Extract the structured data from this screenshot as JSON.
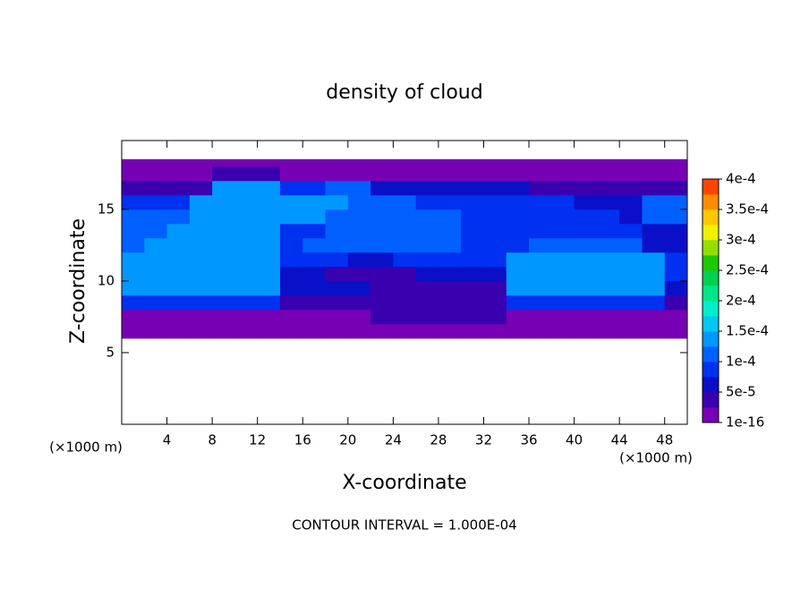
{
  "chart_data": {
    "type": "contour",
    "title": "density of cloud",
    "xlabel": "X-coordinate",
    "ylabel": "Z-coordinate",
    "x_unit_label": "(×1000 m)",
    "y_unit_label": "(×1000 m)",
    "footnote": "CONTOUR INTERVAL = 1.000E-04",
    "xlim": [
      0,
      50
    ],
    "ylim": [
      0,
      19.8
    ],
    "xticks": [
      4,
      8,
      12,
      16,
      20,
      24,
      28,
      32,
      36,
      40,
      44,
      48
    ],
    "yticks": [
      5,
      10,
      15
    ],
    "x": [
      0,
      2,
      4,
      6,
      8,
      10,
      12,
      14,
      16,
      18,
      20,
      22,
      24,
      26,
      28,
      30,
      32,
      34,
      36,
      38,
      40,
      42,
      44,
      46,
      48,
      50
    ],
    "y": [
      6,
      7,
      8,
      9,
      10,
      11,
      12,
      13,
      14,
      15,
      16,
      17,
      18,
      18.5
    ],
    "z": [
      [
        1e-05,
        1e-05,
        1e-05,
        1e-05,
        1e-05,
        1e-05,
        1e-05,
        1e-05,
        1e-05,
        1e-05,
        1e-05,
        1e-05,
        1e-05,
        1e-05,
        1e-05,
        1e-05,
        1e-05,
        1e-05,
        1e-05,
        1e-05,
        1e-05,
        1e-05,
        1e-05,
        1e-05,
        1e-05
      ],
      [
        2e-05,
        2e-05,
        2e-05,
        2e-05,
        2e-05,
        2e-05,
        2e-05,
        2e-05,
        2e-05,
        2e-05,
        2e-05,
        3e-05,
        3e-05,
        3e-05,
        3e-05,
        3e-05,
        3e-05,
        2e-05,
        2e-05,
        2e-05,
        2e-05,
        2e-05,
        2e-05,
        2e-05,
        2e-05
      ],
      [
        8e-05,
        8e-05,
        8e-05,
        8e-05,
        8e-05,
        8e-05,
        8e-05,
        5e-05,
        5e-05,
        5e-05,
        5e-05,
        5e-05,
        5e-05,
        5e-05,
        5e-05,
        5e-05,
        5e-05,
        9e-05,
        9e-05,
        9e-05,
        9e-05,
        9e-05,
        9e-05,
        9e-05,
        4e-05
      ],
      [
        0.00013,
        0.00013,
        0.00013,
        0.00013,
        0.00013,
        0.00013,
        0.00013,
        6e-05,
        6e-05,
        6e-05,
        6e-05,
        5e-05,
        5e-05,
        5e-05,
        5e-05,
        5e-05,
        5e-05,
        0.00013,
        0.00013,
        0.00013,
        0.00013,
        0.00013,
        0.00013,
        0.00013,
        6e-05
      ],
      [
        0.00014,
        0.00014,
        0.00014,
        0.00014,
        0.00014,
        0.00014,
        0.00014,
        7e-05,
        7e-05,
        5e-05,
        5e-05,
        4e-05,
        4e-05,
        7e-05,
        7e-05,
        7e-05,
        7e-05,
        0.000145,
        0.000145,
        0.000145,
        0.000145,
        0.000145,
        0.000145,
        0.000145,
        8e-05
      ],
      [
        0.000145,
        0.000145,
        0.000145,
        0.000145,
        0.000145,
        0.000145,
        0.000145,
        8e-05,
        8e-05,
        8e-05,
        6e-05,
        6e-05,
        0.0001,
        0.0001,
        0.0001,
        8e-05,
        8e-05,
        0.00015,
        0.00015,
        0.00015,
        0.00015,
        0.00015,
        0.00015,
        0.00015,
        8e-05
      ],
      [
        0.00012,
        0.00015,
        0.00015,
        0.00015,
        0.00015,
        0.00015,
        0.00015,
        0.0001,
        0.00011,
        0.00011,
        0.000105,
        0.000105,
        0.000105,
        0.000105,
        0.000105,
        9e-05,
        9e-05,
        9e-05,
        0.00012,
        0.00012,
        0.00012,
        0.00012,
        0.00012,
        7e-05,
        7e-05
      ],
      [
        0.00011,
        0.00011,
        0.00014,
        0.00014,
        0.00014,
        0.00014,
        0.00014,
        0.0001,
        0.0001,
        0.00011,
        0.00011,
        0.00011,
        0.00011,
        0.00011,
        0.00011,
        9e-05,
        9e-05,
        9e-05,
        9e-05,
        9e-05,
        8e-05,
        8e-05,
        8e-05,
        6e-05,
        6e-05
      ],
      [
        0.00012,
        0.00012,
        0.00012,
        0.000145,
        0.000145,
        0.000145,
        0.000145,
        0.00013,
        0.00013,
        0.00012,
        0.00012,
        0.00012,
        0.00012,
        0.00012,
        0.00012,
        9e-05,
        9e-05,
        9e-05,
        9e-05,
        9e-05,
        9e-05,
        9e-05,
        6e-05,
        0.00012,
        0.00012
      ],
      [
        8e-05,
        8e-05,
        8e-05,
        0.00014,
        0.00014,
        0.00014,
        0.00014,
        0.00013,
        0.00013,
        0.00013,
        0.00011,
        0.00011,
        0.00011,
        9e-05,
        9e-05,
        9e-05,
        9e-05,
        9e-05,
        9e-05,
        9e-05,
        6e-05,
        6e-05,
        6e-05,
        0.00011,
        0.00011
      ],
      [
        5e-05,
        5e-05,
        5e-05,
        5e-05,
        0.00013,
        0.00013,
        0.00013,
        9e-05,
        9e-05,
        0.00011,
        0.00011,
        7e-05,
        7e-05,
        7e-05,
        7e-05,
        7e-05,
        7e-05,
        7e-05,
        5e-05,
        5e-05,
        5e-05,
        5e-05,
        5e-05,
        5e-05,
        5e-05
      ],
      [
        2e-05,
        2e-05,
        2e-05,
        2e-05,
        4e-05,
        4e-05,
        4e-05,
        2e-05,
        2e-05,
        2e-05,
        2e-05,
        2e-05,
        2e-05,
        2e-05,
        2e-05,
        2e-05,
        2e-05,
        2e-05,
        2e-05,
        2e-05,
        2e-05,
        2e-05,
        2e-05,
        2e-05,
        2e-05
      ],
      [
        1e-05,
        1e-05,
        1e-05,
        1e-05,
        1e-05,
        1e-05,
        1e-05,
        1e-05,
        1e-05,
        1e-05,
        1e-05,
        1e-05,
        1e-05,
        1e-05,
        1e-05,
        1e-05,
        1e-05,
        1e-05,
        1e-05,
        1e-05,
        1e-05,
        1e-05,
        1e-05,
        1e-05,
        1e-05
      ]
    ],
    "clim": [
      1e-16,
      0.0004
    ],
    "cticks": [
      {
        "value": 1e-16,
        "label": "1e-16"
      },
      {
        "value": 5e-05,
        "label": "5e-5"
      },
      {
        "value": 0.0001,
        "label": "1e-4"
      },
      {
        "value": 0.00015,
        "label": "1.5e-4"
      },
      {
        "value": 0.0002,
        "label": "2e-4"
      },
      {
        "value": 0.00025,
        "label": "2.5e-4"
      },
      {
        "value": 0.0003,
        "label": "3e-4"
      },
      {
        "value": 0.00035,
        "label": "3.5e-4"
      },
      {
        "value": 0.0004,
        "label": "4e-4"
      }
    ],
    "colors": [
      "#7800b4",
      "#3a00b0",
      "#0a10c8",
      "#0030f0",
      "#0060ff",
      "#0098ff",
      "#00c8f0",
      "#00eecc",
      "#00e68a",
      "#00d050",
      "#20c800",
      "#90e000",
      "#f0f000",
      "#ffc800",
      "#ff8c00",
      "#ff4400",
      "#ff0000",
      "#ff8080"
    ]
  }
}
